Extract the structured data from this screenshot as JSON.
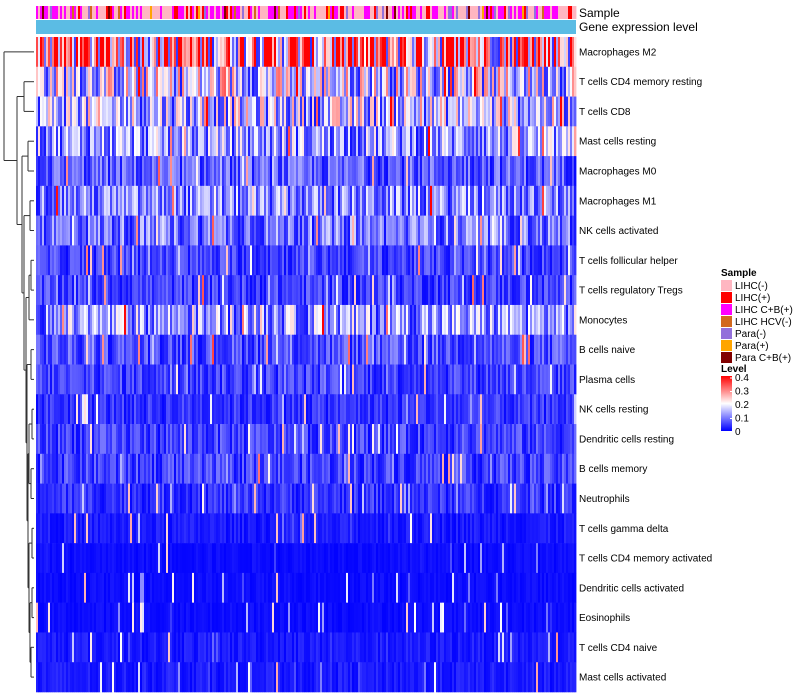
{
  "chart_data": {
    "type": "heatmap",
    "annotations": [
      "Sample",
      "Gene expression level"
    ],
    "rows": [
      "Macrophages M2",
      "T cells CD4 memory resting",
      "T cells CD8",
      "Mast cells resting",
      "Macrophages M0",
      "Macrophages M1",
      "NK cells activated",
      "T cells follicular helper",
      "T cells regulatory  Tregs",
      "Monocytes",
      "B cells naive",
      "Plasma cells",
      "NK cells resting",
      "Dendritic cells resting",
      "B cells memory",
      "Neutrophils",
      "T cells gamma delta",
      "T cells CD4 memory activated",
      "Dendritic cells activated",
      "Eosinophils",
      "T cells CD4 naive",
      "Mast cells activated"
    ],
    "row_mean_level": [
      0.28,
      0.17,
      0.15,
      0.12,
      0.07,
      0.1,
      0.09,
      0.05,
      0.05,
      0.12,
      0.06,
      0.05,
      0.04,
      0.05,
      0.05,
      0.04,
      0.02,
      0.01,
      0.01,
      0.01,
      0.02,
      0.02
    ],
    "n_samples": 270,
    "sample_legend": {
      "title": "Sample",
      "items": [
        {
          "label": "LIHC(-)",
          "color": "#ffb6c1"
        },
        {
          "label": "LIHC(+)",
          "color": "#ff0000"
        },
        {
          "label": "LIHC C+B(+)",
          "color": "#ff00ff"
        },
        {
          "label": "LIHC HCV(-)",
          "color": "#d2691e"
        },
        {
          "label": "Para(-)",
          "color": "#9370db"
        },
        {
          "label": "Para(+)",
          "color": "#ffa500"
        },
        {
          "label": "Para C+B(+)",
          "color": "#800000"
        }
      ]
    },
    "level_legend": {
      "title": "Level",
      "ticks": [
        "0.4",
        "0.3",
        "0.2",
        "0.1",
        "0"
      ],
      "range": [
        0,
        0.4
      ],
      "colors": [
        "#0000ff",
        "#ffffff",
        "#ff0000"
      ]
    },
    "gene_expression_color": "#5bbce4"
  }
}
